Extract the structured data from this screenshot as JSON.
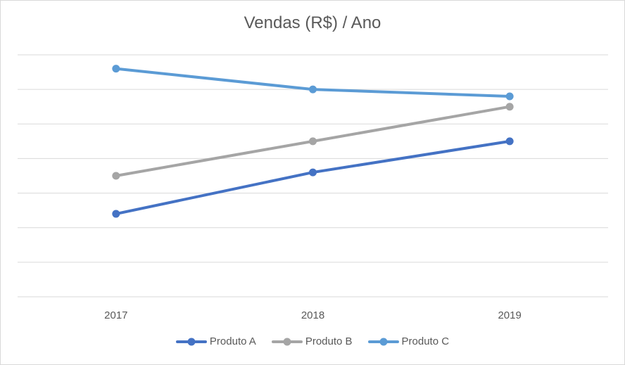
{
  "chart_data": {
    "type": "line",
    "title": "Vendas (R$) / Ano",
    "categories": [
      "2017",
      "2018",
      "2019"
    ],
    "ylim": [
      0,
      7
    ],
    "grid": true,
    "legend_position": "bottom",
    "series": [
      {
        "name": "Produto A",
        "color": "#4472c4",
        "values": [
          2.4,
          3.6,
          4.5
        ]
      },
      {
        "name": "Produto B",
        "color": "#a5a5a5",
        "values": [
          3.5,
          4.5,
          5.5
        ]
      },
      {
        "name": "Produto C",
        "color": "#5b9bd5",
        "values": [
          6.6,
          6.0,
          5.8
        ]
      }
    ]
  }
}
